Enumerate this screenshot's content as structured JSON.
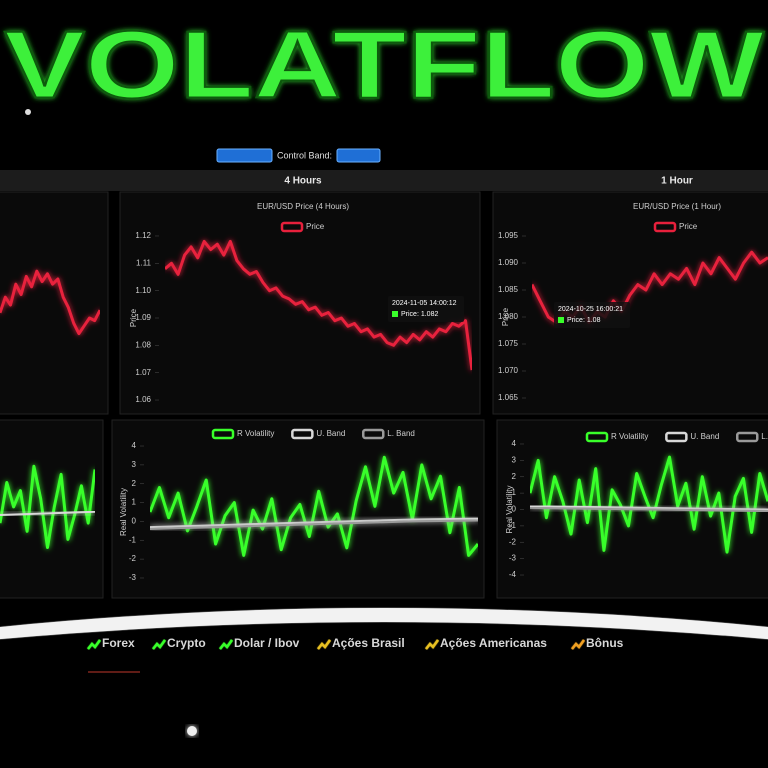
{
  "title": "VOLATFLOW",
  "controls": {
    "band_label": "Control Band:"
  },
  "panels": [
    {
      "price_chart": {
        "type": "line",
        "series": [
          {
            "color": "#e8203c",
            "values": [
              1.072,
              1.078,
              1.075,
              1.083,
              1.079,
              1.086,
              1.082,
              1.088,
              1.084,
              1.087,
              1.083,
              1.085,
              1.078,
              1.074,
              1.068,
              1.064,
              1.067,
              1.07,
              1.069,
              1.073
            ]
          }
        ],
        "ylim": [
          1.05,
          1.1
        ]
      },
      "volatility_chart": {
        "type": "line",
        "series": [
          {
            "color": "#39ff2a",
            "values": [
              -0.5,
              2.0,
              0.5,
              1.5,
              -1.0,
              3.0,
              1.0,
              -2.0,
              0.5,
              2.5,
              -1.5,
              0.0,
              1.8,
              -0.5,
              2.8
            ]
          },
          {
            "color": "#d8d8d8",
            "values": [
              0.0,
              0.1,
              0.2
            ]
          }
        ],
        "ylim": [
          -4,
          4
        ]
      }
    },
    {
      "header": "4 Hours",
      "price_chart": {
        "type": "line",
        "title": "EUR/USD Price (4 Hours)",
        "y_label": "Price",
        "series": [
          {
            "name": "Price",
            "color": "#e8203c",
            "values": [
              1.108,
              1.11,
              1.106,
              1.113,
              1.116,
              1.112,
              1.118,
              1.115,
              1.117,
              1.113,
              1.118,
              1.111,
              1.108,
              1.106,
              1.107,
              1.103,
              1.1,
              1.101,
              1.098,
              1.097,
              1.095,
              1.096,
              1.093,
              1.094,
              1.091,
              1.092,
              1.089,
              1.09,
              1.087,
              1.088,
              1.085,
              1.086,
              1.083,
              1.084,
              1.081,
              1.08,
              1.083,
              1.081,
              1.084,
              1.082,
              1.085,
              1.083,
              1.086,
              1.085,
              1.088,
              1.087,
              1.089,
              1.071
            ]
          }
        ],
        "ylim": [
          1.055,
          1.125
        ],
        "yticks": [
          1.12,
          1.11,
          {
            "value": 1.1,
            "label": "1.10"
          },
          1.09,
          1.08,
          1.07,
          1.06
        ],
        "tooltip": {
          "date": "2024-11-05 14:00:12",
          "text": "Price: 1.082"
        }
      },
      "volatility_chart": {
        "type": "line",
        "y_label": "Real Volatility",
        "series": [
          {
            "name": "R Volatility",
            "color": "#39ff2a",
            "values": [
              0.5,
              1.8,
              0.2,
              1.5,
              -0.5,
              0.8,
              2.2,
              -1.2,
              0.3,
              1.0,
              -1.8,
              0.6,
              -0.4,
              1.2,
              -1.5,
              0.2,
              0.9,
              -0.8,
              1.6,
              -0.3,
              0.4,
              -1.4,
              1.1,
              2.9,
              0.8,
              3.4,
              1.5,
              2.6,
              0.1,
              3.0,
              1.2,
              2.4,
              -0.6,
              1.8,
              -1.8,
              -1.2
            ]
          },
          {
            "name": "U. Band",
            "color": "#d8d8d8",
            "values": [
              -0.3,
              -0.2,
              -0.1,
              0.0,
              0.1,
              0.15
            ]
          },
          {
            "name": "L. Band",
            "color": "#9a9a9a",
            "values": [
              -0.4,
              -0.3,
              -0.2,
              -0.1,
              0.0,
              0.05
            ]
          }
        ],
        "ylim": [
          -3.5,
          4.5
        ],
        "yticks": [
          4,
          3,
          2,
          1,
          0,
          -1,
          -2,
          -3
        ]
      }
    },
    {
      "header": "1 Hour",
      "price_chart": {
        "type": "line",
        "title": "EUR/USD Price (1 Hour)",
        "y_label": "Price",
        "series": [
          {
            "name": "Price",
            "color": "#e8203c",
            "values": [
              1.086,
              1.083,
              1.08,
              1.079,
              1.081,
              1.08,
              1.082,
              1.079,
              1.081,
              1.08,
              1.083,
              1.081,
              1.084,
              1.086,
              1.085,
              1.088,
              1.086,
              1.088,
              1.087,
              1.089,
              1.086,
              1.09,
              1.088,
              1.091,
              1.089,
              1.087,
              1.09,
              1.092,
              1.09,
              1.091
            ]
          }
        ],
        "ylim": [
          1.06,
          1.1
        ],
        "yticks": [
          1.095,
          {
            "value": 1.09,
            "label": "1.090"
          },
          1.085,
          {
            "value": 1.08,
            "label": "1.080"
          },
          1.075,
          {
            "value": 1.07,
            "label": "1.070"
          },
          1.065
        ],
        "tooltip": {
          "date": "2024-10-25 16:00:21",
          "text": "Price: 1.08"
        }
      },
      "volatility_chart": {
        "type": "line",
        "y_label": "Real Volatility",
        "series": [
          {
            "name": "R Volatility",
            "color": "#39ff2a",
            "values": [
              1.0,
              3.0,
              -0.5,
              2.0,
              0.5,
              -1.5,
              1.8,
              -0.8,
              2.5,
              -2.5,
              1.2,
              0.3,
              -1.0,
              2.2,
              0.8,
              -0.5,
              1.5,
              3.2,
              0.2,
              1.6,
              -1.2,
              2.0,
              -0.4,
              1.0,
              -2.6,
              0.8,
              1.9,
              -1.4,
              2.2,
              0.5
            ]
          },
          {
            "name": "U. Band",
            "color": "#d8d8d8",
            "values": [
              0.2,
              0.15,
              0.1,
              0.05,
              0.0
            ]
          },
          {
            "name": "L. Band",
            "color": "#9a9a9a",
            "values": [
              0.1,
              0.05,
              0.0,
              -0.05,
              -0.1
            ]
          }
        ],
        "ylim": [
          -4.5,
          4.5
        ],
        "yticks": [
          4,
          3,
          2,
          1,
          0,
          -1,
          -2,
          -3,
          -4
        ]
      }
    }
  ],
  "nav": [
    "Forex",
    "Crypto",
    "Dolar / Ibov",
    "Ações Brasil",
    "Ações Americanas",
    "Bônus"
  ]
}
